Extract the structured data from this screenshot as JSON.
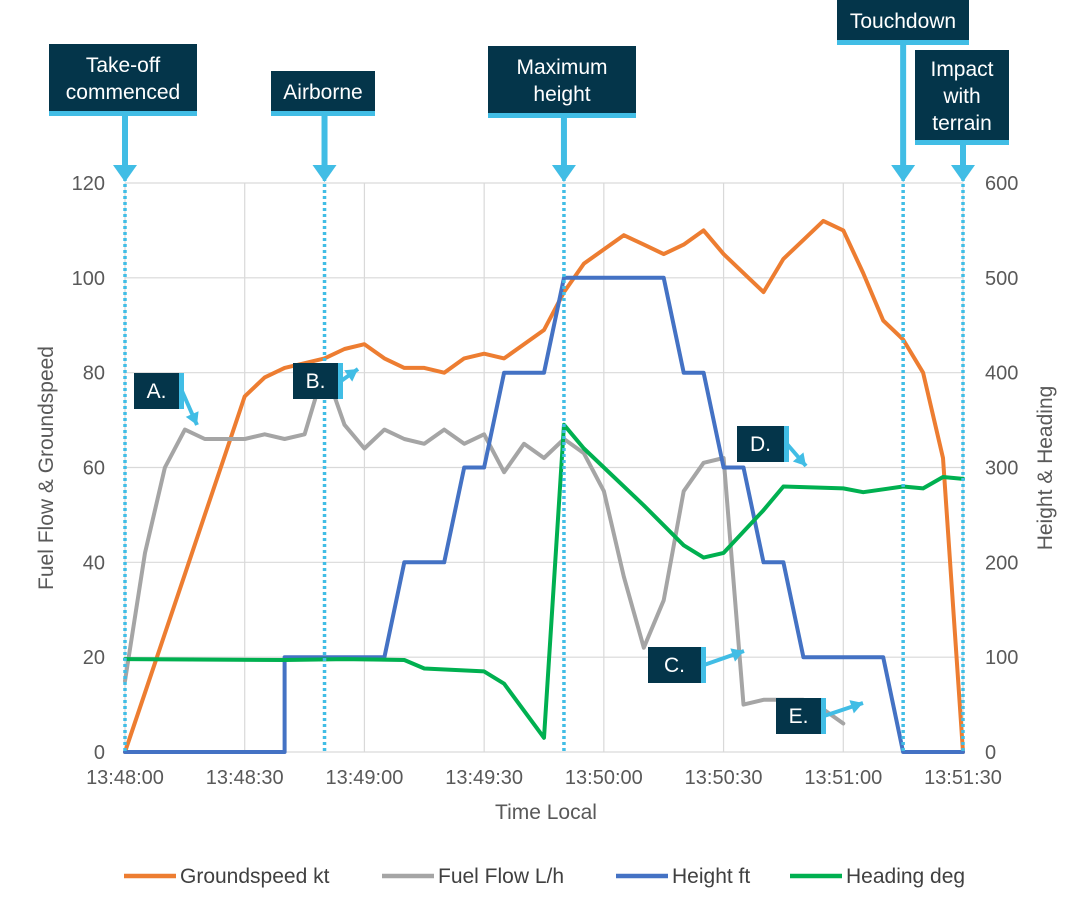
{
  "chart_data": {
    "type": "line",
    "x": [
      "13:48:00",
      "13:48:05",
      "13:48:10",
      "13:48:15",
      "13:48:20",
      "13:48:25",
      "13:48:30",
      "13:48:35",
      "13:48:40",
      "13:48:45",
      "13:48:50",
      "13:48:55",
      "13:49:00",
      "13:49:05",
      "13:49:10",
      "13:49:15",
      "13:49:20",
      "13:49:25",
      "13:49:30",
      "13:49:35",
      "13:49:40",
      "13:49:45",
      "13:49:50",
      "13:49:55",
      "13:50:00",
      "13:50:05",
      "13:50:10",
      "13:50:15",
      "13:50:20",
      "13:50:25",
      "13:50:30",
      "13:50:35",
      "13:50:40",
      "13:50:45",
      "13:50:50",
      "13:50:55",
      "13:51:00",
      "13:51:05",
      "13:51:10",
      "13:51:15",
      "13:51:20",
      "13:51:25",
      "13:51:30"
    ],
    "xlabel": "Time Local",
    "ylabel_left": "Fuel Flow & Groundspeed",
    "ylabel_right": "Height & Heading",
    "x_ticks": [
      "13:48:00",
      "13:48:30",
      "13:49:00",
      "13:49:30",
      "13:50:00",
      "13:50:30",
      "13:51:00",
      "13:51:30"
    ],
    "ylim_left": [
      0,
      120
    ],
    "y_ticks_left": [
      "0",
      "20",
      "40",
      "60",
      "80",
      "100",
      "120"
    ],
    "ylim_right": [
      0,
      600
    ],
    "y_ticks_right": [
      "0",
      "100",
      "200",
      "300",
      "400",
      "500",
      "600"
    ],
    "grid": true,
    "legend_position": "bottom",
    "series": [
      {
        "name": "Groundspeed kt",
        "axis": "left",
        "color": "#ED7D31",
        "points": [
          [
            "13:48:00",
            0
          ],
          [
            "13:48:05",
            12.5
          ],
          [
            "13:48:10",
            25
          ],
          [
            "13:48:15",
            37.5
          ],
          [
            "13:48:20",
            50
          ],
          [
            "13:48:25",
            62.5
          ],
          [
            "13:48:30",
            75
          ],
          [
            "13:48:35",
            79
          ],
          [
            "13:48:40",
            81
          ],
          [
            "13:48:45",
            82
          ],
          [
            "13:48:50",
            83
          ],
          [
            "13:48:55",
            85
          ],
          [
            "13:49:00",
            86
          ],
          [
            "13:49:05",
            83
          ],
          [
            "13:49:10",
            81
          ],
          [
            "13:49:15",
            81
          ],
          [
            "13:49:20",
            80
          ],
          [
            "13:49:25",
            83
          ],
          [
            "13:49:30",
            84
          ],
          [
            "13:49:35",
            83
          ],
          [
            "13:49:40",
            86
          ],
          [
            "13:49:45",
            89
          ],
          [
            "13:49:50",
            97
          ],
          [
            "13:49:55",
            103
          ],
          [
            "13:50:00",
            106
          ],
          [
            "13:50:05",
            109
          ],
          [
            "13:50:10",
            107
          ],
          [
            "13:50:15",
            105
          ],
          [
            "13:50:20",
            107
          ],
          [
            "13:50:25",
            110
          ],
          [
            "13:50:30",
            105
          ],
          [
            "13:50:35",
            101
          ],
          [
            "13:50:40",
            97
          ],
          [
            "13:50:45",
            104
          ],
          [
            "13:50:50",
            108
          ],
          [
            "13:50:55",
            112
          ],
          [
            "13:51:00",
            110
          ],
          [
            "13:51:05",
            101
          ],
          [
            "13:51:10",
            91
          ],
          [
            "13:51:15",
            87
          ],
          [
            "13:51:20",
            80
          ],
          [
            "13:51:25",
            62
          ],
          [
            "13:51:30",
            0
          ]
        ]
      },
      {
        "name": "Fuel Flow L/h",
        "axis": "left",
        "color": "#A5A5A5",
        "points": [
          [
            "13:48:00",
            15
          ],
          [
            "13:48:05",
            42
          ],
          [
            "13:48:10",
            60
          ],
          [
            "13:48:15",
            68
          ],
          [
            "13:48:20",
            66
          ],
          [
            "13:48:25",
            66
          ],
          [
            "13:48:30",
            66
          ],
          [
            "13:48:35",
            67
          ],
          [
            "13:48:40",
            66
          ],
          [
            "13:48:45",
            67
          ],
          [
            "13:48:50",
            81
          ],
          [
            "13:48:55",
            69
          ],
          [
            "13:49:00",
            64
          ],
          [
            "13:49:05",
            68
          ],
          [
            "13:49:10",
            66
          ],
          [
            "13:49:15",
            65
          ],
          [
            "13:49:20",
            68
          ],
          [
            "13:49:25",
            65
          ],
          [
            "13:49:30",
            67
          ],
          [
            "13:49:35",
            59
          ],
          [
            "13:49:40",
            65
          ],
          [
            "13:49:45",
            62
          ],
          [
            "13:49:50",
            66
          ],
          [
            "13:49:55",
            63
          ],
          [
            "13:50:00",
            55
          ],
          [
            "13:50:05",
            37
          ],
          [
            "13:50:10",
            22
          ],
          [
            "13:50:15",
            32
          ],
          [
            "13:50:20",
            55
          ],
          [
            "13:50:25",
            61
          ],
          [
            "13:50:30",
            62
          ],
          [
            "13:50:35",
            10
          ],
          [
            "13:50:40",
            11
          ],
          [
            "13:50:45",
            11
          ],
          [
            "13:50:50",
            11
          ],
          [
            "13:50:55",
            9
          ],
          [
            "13:51:00",
            6
          ]
        ]
      },
      {
        "name": "Height ft",
        "axis": "right",
        "color": "#4472C4",
        "points": [
          [
            "13:48:00",
            0
          ],
          [
            "13:48:40",
            0
          ],
          [
            "13:48:40",
            100
          ],
          [
            "13:48:55",
            100
          ],
          [
            "13:49:05",
            100
          ],
          [
            "13:49:10",
            200
          ],
          [
            "13:49:20",
            200
          ],
          [
            "13:49:25",
            300
          ],
          [
            "13:49:30",
            300
          ],
          [
            "13:49:35",
            400
          ],
          [
            "13:49:45",
            400
          ],
          [
            "13:49:50",
            500
          ],
          [
            "13:50:00",
            500
          ],
          [
            "13:50:05",
            500
          ],
          [
            "13:50:15",
            500
          ],
          [
            "13:50:20",
            400
          ],
          [
            "13:50:25",
            400
          ],
          [
            "13:50:30",
            300
          ],
          [
            "13:50:35",
            300
          ],
          [
            "13:50:40",
            200
          ],
          [
            "13:50:45",
            200
          ],
          [
            "13:50:50",
            100
          ],
          [
            "13:51:00",
            100
          ],
          [
            "13:51:10",
            100
          ],
          [
            "13:51:15",
            0
          ],
          [
            "13:51:30",
            0
          ]
        ]
      },
      {
        "name": "Heading deg",
        "axis": "right",
        "color": "#00B050",
        "points": [
          [
            "13:48:00",
            98
          ],
          [
            "13:48:40",
            97
          ],
          [
            "13:48:55",
            98
          ],
          [
            "13:49:10",
            97
          ],
          [
            "13:49:15",
            88
          ],
          [
            "13:49:30",
            85
          ],
          [
            "13:49:35",
            72
          ],
          [
            "13:49:45",
            15
          ],
          [
            "13:49:50",
            345
          ],
          [
            "13:49:55",
            320
          ],
          [
            "13:50:00",
            300
          ],
          [
            "13:50:10",
            260
          ],
          [
            "13:50:20",
            218
          ],
          [
            "13:50:25",
            205
          ],
          [
            "13:50:30",
            210
          ],
          [
            "13:50:40",
            255
          ],
          [
            "13:50:45",
            280
          ],
          [
            "13:51:00",
            278
          ],
          [
            "13:51:05",
            274
          ],
          [
            "13:51:15",
            280
          ],
          [
            "13:51:20",
            278
          ],
          [
            "13:51:25",
            290
          ],
          [
            "13:51:30",
            288
          ]
        ]
      }
    ],
    "events": [
      {
        "label": "Take-off commenced",
        "lines": [
          "Take-off",
          "commenced"
        ],
        "time": "13:48:00"
      },
      {
        "label": "Airborne",
        "lines": [
          "Airborne"
        ],
        "time": "13:48:50"
      },
      {
        "label": "Maximum height",
        "lines": [
          "Maximum",
          "height"
        ],
        "time": "13:49:50"
      },
      {
        "label": "Touchdown",
        "lines": [
          "Touchdown"
        ],
        "time": "13:51:15"
      },
      {
        "label": "Impact with terrain",
        "lines": [
          "Impact",
          "with",
          "terrain"
        ],
        "time": "13:51:30"
      }
    ],
    "annotations": [
      {
        "label": "A."
      },
      {
        "label": "B."
      },
      {
        "label": "C."
      },
      {
        "label": "D."
      },
      {
        "label": "E."
      }
    ]
  },
  "colors": {
    "event_box": "#04354A",
    "event_accent": "#41BDE5",
    "grid": "#D9D9D9",
    "axis_text": "#595959"
  }
}
